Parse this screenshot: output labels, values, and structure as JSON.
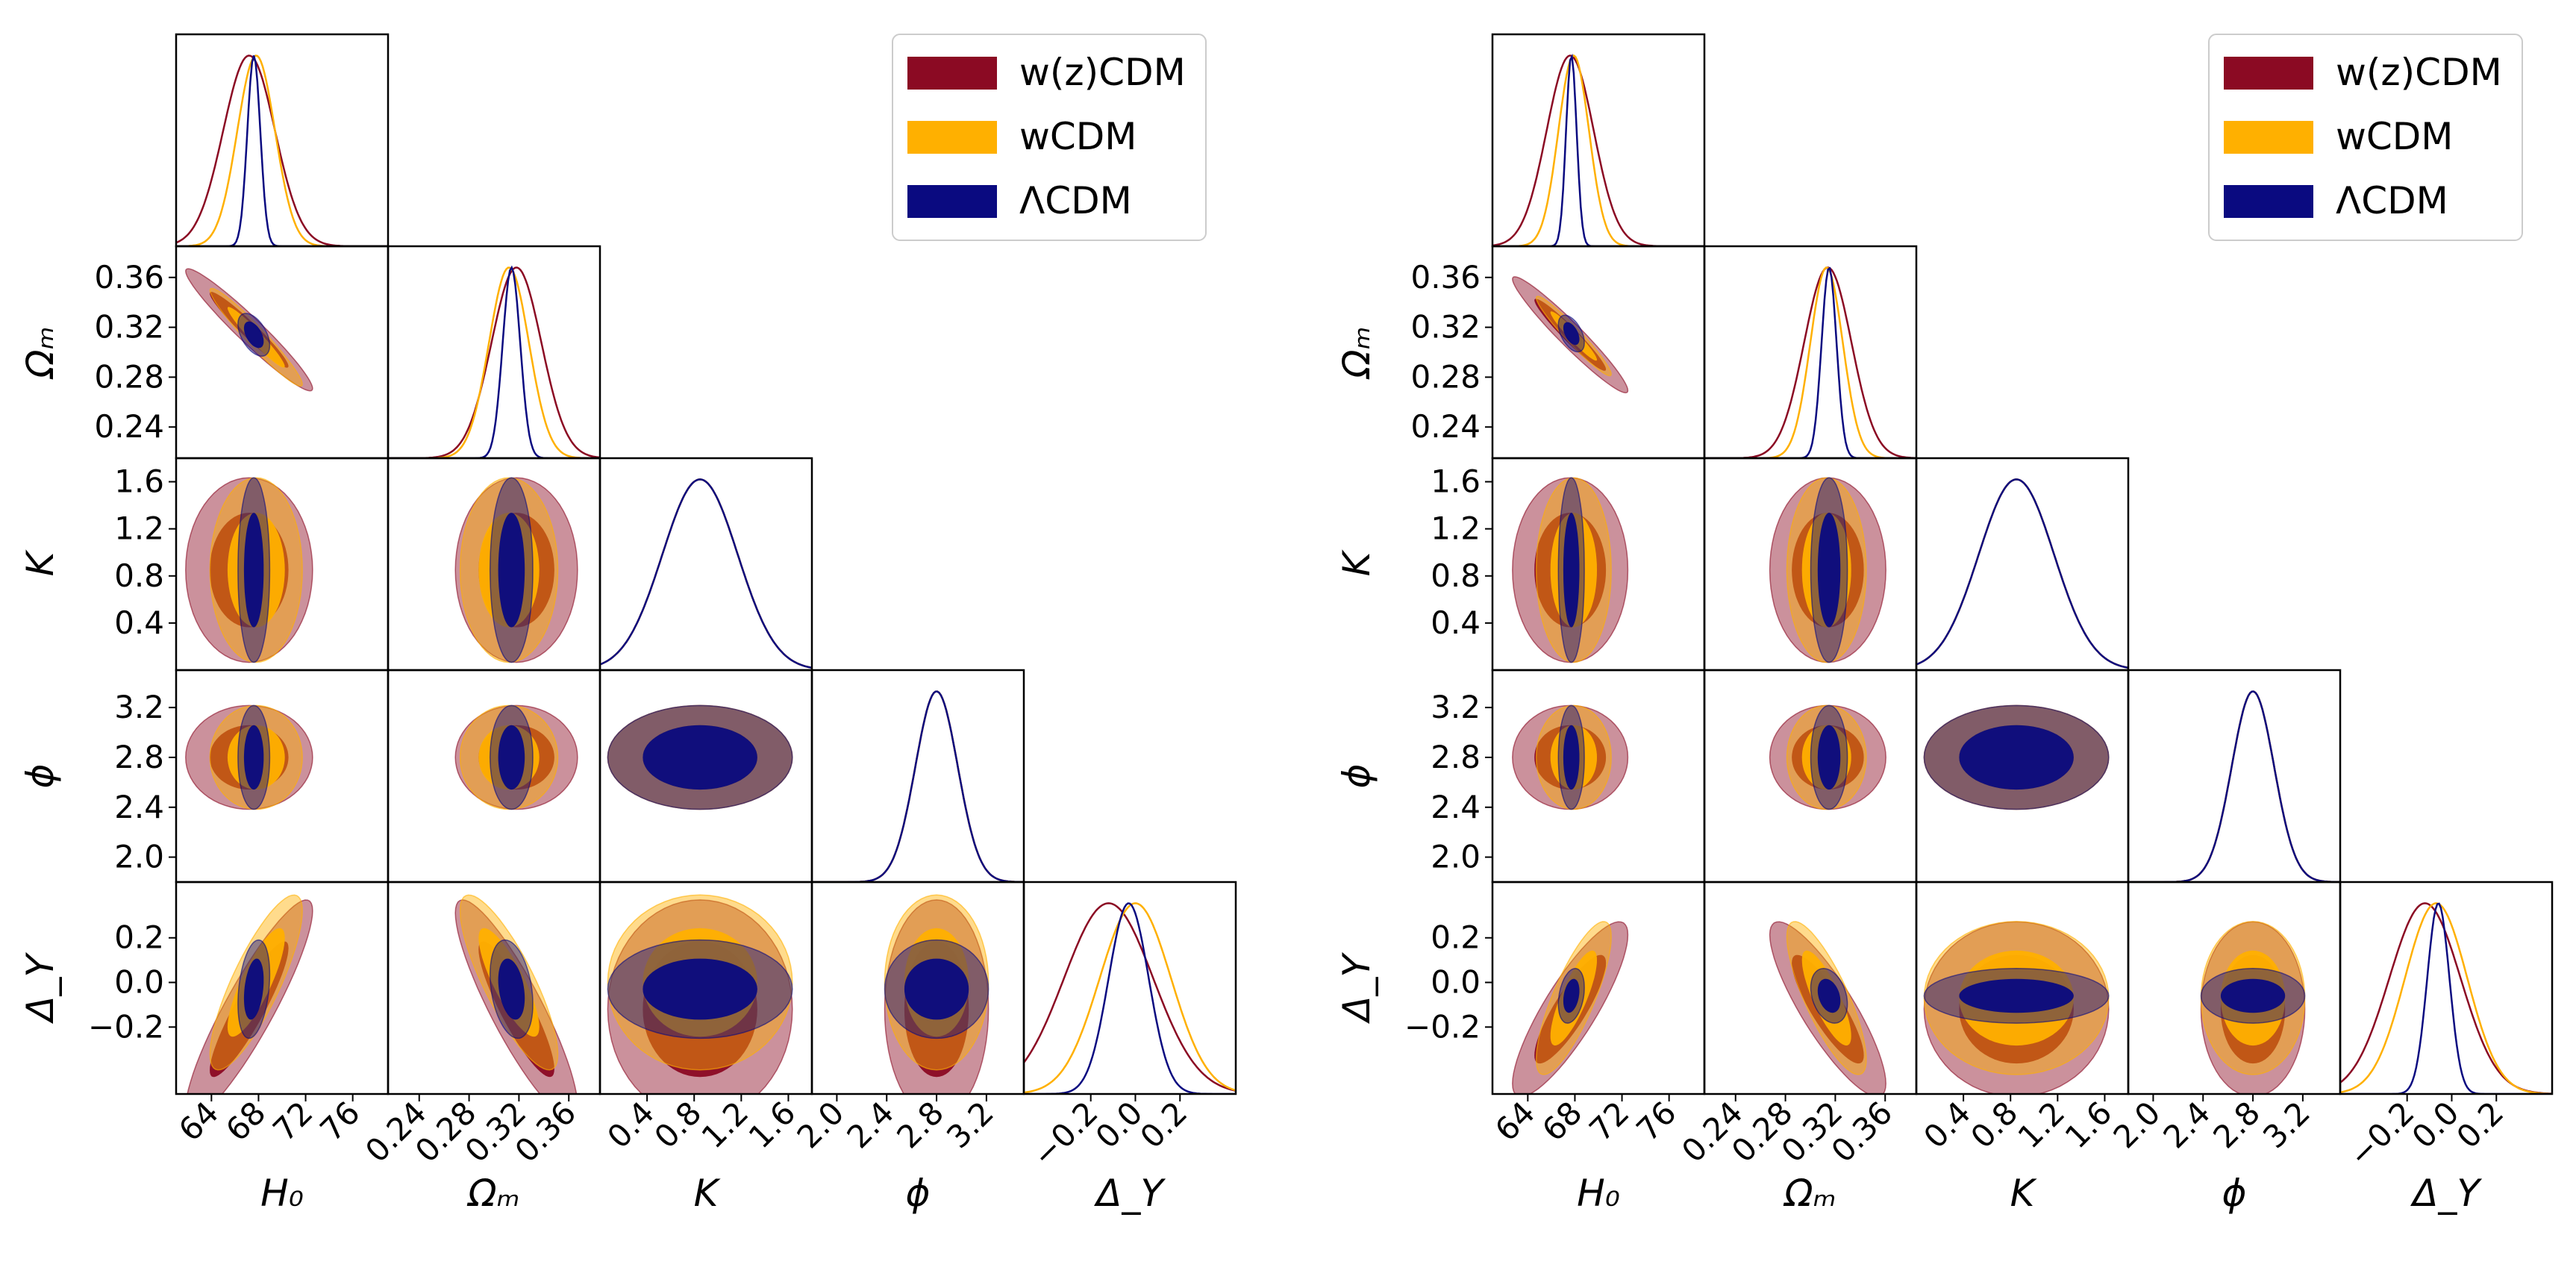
{
  "colors": {
    "wz": "#8b0a23",
    "w": "#ffb000",
    "lcdm": "#0a0a80"
  },
  "legend": {
    "items": [
      {
        "label": "w(z)CDM",
        "color": "#8b0a23"
      },
      {
        "label": "wCDM",
        "color": "#ffb000"
      },
      {
        "label": "ΛCDM",
        "color": "#0a0a80"
      }
    ]
  },
  "chart_data": [
    {
      "type": "corner",
      "panel": "left",
      "parameters": [
        {
          "name": "H0",
          "label": "H₀",
          "range": [
            61,
            79
          ],
          "ticks": [
            64,
            68,
            72,
            76
          ],
          "tick_labels": [
            "64",
            "68",
            "72",
            "76"
          ]
        },
        {
          "name": "Omega_m",
          "label": "Ωₘ",
          "range": [
            0.215,
            0.385
          ],
          "ticks": [
            0.24,
            0.28,
            0.32,
            0.36
          ],
          "tick_labels": [
            "0.24",
            "0.28",
            "0.32",
            "0.36"
          ]
        },
        {
          "name": "K",
          "label": "K",
          "range": [
            0.0,
            1.8
          ],
          "ticks": [
            0.4,
            0.8,
            1.2,
            1.6
          ],
          "tick_labels": [
            "0.4",
            "0.8",
            "1.2",
            "1.6"
          ]
        },
        {
          "name": "phi",
          "label": "ϕ",
          "range": [
            1.8,
            3.5
          ],
          "ticks": [
            2.0,
            2.4,
            2.8,
            3.2
          ],
          "tick_labels": [
            "2.0",
            "2.4",
            "2.8",
            "3.2"
          ]
        },
        {
          "name": "Delta_Y",
          "label": "Δ_Y",
          "range": [
            -0.5,
            0.45
          ],
          "ticks": [
            -0.2,
            0.0,
            0.2
          ],
          "tick_labels": [
            "−0.2",
            "0.0",
            "0.2"
          ]
        }
      ],
      "series": [
        {
          "name": "w(z)CDM",
          "mean": [
            67.2,
            0.318,
            0.85,
            2.8,
            -0.12
          ],
          "sigma": [
            2.2,
            0.02,
            0.32,
            0.17,
            0.2
          ],
          "corr_H0_Om": -0.96,
          "corr_H0_DY": 0.9,
          "corr_Om_DY": -0.88
        },
        {
          "name": "wCDM",
          "mean": [
            67.8,
            0.312,
            0.85,
            2.8,
            0.0
          ],
          "sigma": [
            1.6,
            0.016,
            0.32,
            0.17,
            0.16
          ],
          "corr_H0_Om": -0.96,
          "corr_H0_DY": 0.82,
          "corr_Om_DY": -0.82
        },
        {
          "name": "ΛCDM",
          "mean": [
            67.6,
            0.314,
            0.85,
            2.8,
            -0.03
          ],
          "sigma": [
            0.55,
            0.007,
            0.32,
            0.17,
            0.09
          ],
          "corr_H0_Om": -0.5,
          "corr_H0_DY": 0.3,
          "corr_Om_DY": -0.3
        }
      ]
    },
    {
      "type": "corner",
      "panel": "right",
      "parameters": [
        {
          "name": "H0",
          "label": "H₀",
          "range": [
            61,
            79
          ],
          "ticks": [
            64,
            68,
            72,
            76
          ],
          "tick_labels": [
            "64",
            "68",
            "72",
            "76"
          ]
        },
        {
          "name": "Omega_m",
          "label": "Ωₘ",
          "range": [
            0.215,
            0.385
          ],
          "ticks": [
            0.24,
            0.28,
            0.32,
            0.36
          ],
          "tick_labels": [
            "0.24",
            "0.28",
            "0.32",
            "0.36"
          ]
        },
        {
          "name": "K",
          "label": "K",
          "range": [
            0.0,
            1.8
          ],
          "ticks": [
            0.4,
            0.8,
            1.2,
            1.6
          ],
          "tick_labels": [
            "0.4",
            "0.8",
            "1.2",
            "1.6"
          ]
        },
        {
          "name": "phi",
          "label": "ϕ",
          "range": [
            1.8,
            3.5
          ],
          "ticks": [
            2.0,
            2.4,
            2.8,
            3.2
          ],
          "tick_labels": [
            "2.0",
            "2.4",
            "2.8",
            "3.2"
          ]
        },
        {
          "name": "Delta_Y",
          "label": "Δ_Y",
          "range": [
            -0.5,
            0.45
          ],
          "ticks": [
            -0.2,
            0.0,
            0.2
          ],
          "tick_labels": [
            "−0.2",
            "0.0",
            "0.2"
          ]
        }
      ],
      "series": [
        {
          "name": "w(z)CDM",
          "mean": [
            67.6,
            0.314,
            0.85,
            2.8,
            -0.12
          ],
          "sigma": [
            2.0,
            0.019,
            0.32,
            0.17,
            0.16
          ],
          "corr_H0_Om": -0.96,
          "corr_H0_DY": 0.85,
          "corr_Om_DY": -0.85
        },
        {
          "name": "wCDM",
          "mean": [
            67.9,
            0.313,
            0.85,
            2.8,
            -0.07
          ],
          "sigma": [
            1.3,
            0.013,
            0.32,
            0.17,
            0.14
          ],
          "corr_H0_Om": -0.96,
          "corr_H0_DY": 0.8,
          "corr_Om_DY": -0.8
        },
        {
          "name": "ΛCDM",
          "mean": [
            67.7,
            0.315,
            0.85,
            2.8,
            -0.06
          ],
          "sigma": [
            0.45,
            0.006,
            0.32,
            0.17,
            0.05
          ],
          "corr_H0_Om": -0.5,
          "corr_H0_DY": 0.3,
          "corr_Om_DY": -0.3
        }
      ]
    }
  ]
}
